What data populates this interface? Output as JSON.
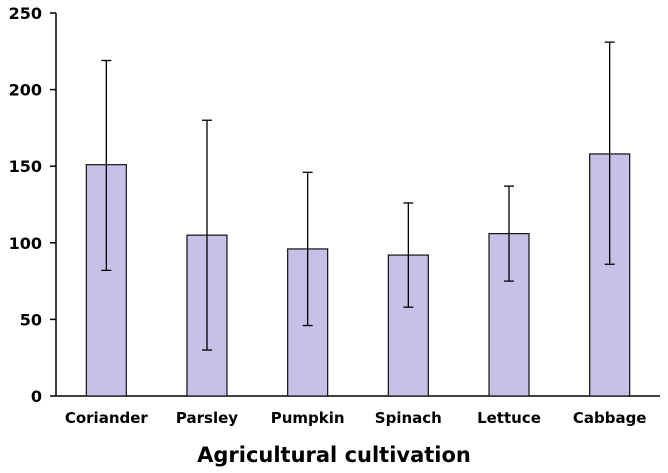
{
  "chart_data": {
    "type": "bar",
    "title": "",
    "xlabel": "Agricultural cultivation",
    "ylabel": "",
    "ylim": [
      0,
      250
    ],
    "yticks": [
      0,
      50,
      100,
      150,
      200,
      250
    ],
    "yticklabels": [
      "0",
      "50",
      "100",
      "150",
      "200",
      "250"
    ],
    "categories": [
      "Coriander",
      "Parsley",
      "Pumpkin",
      "Spinach",
      "Lettuce",
      "Cabbage"
    ],
    "series": [
      {
        "values": [
          151,
          105,
          96,
          92,
          106,
          158
        ],
        "error_low": [
          82,
          30,
          46,
          58,
          75,
          86
        ],
        "error_high": [
          219,
          180,
          146,
          126,
          137,
          231
        ]
      }
    ],
    "grid": false,
    "legend": "none",
    "colors": {
      "bar_fill": "#c6c1e6",
      "bar_stroke": "#111111",
      "axis": "#000000"
    }
  }
}
